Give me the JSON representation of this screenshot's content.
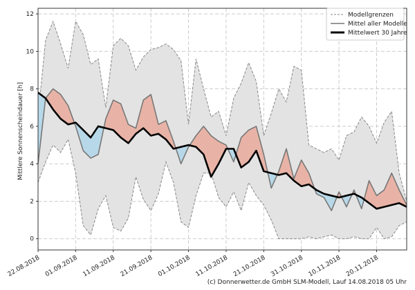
{
  "chart_data": {
    "type": "line",
    "title": "",
    "xlabel": "",
    "ylabel": "Mittlere Sonnenscheindauer [h]",
    "ylim": [
      -0.6,
      12.3
    ],
    "yticks": [
      0,
      2,
      4,
      6,
      8,
      10,
      12
    ],
    "x_start_date": "22.08.2018",
    "x_day_offsets": [
      0,
      2,
      4,
      6,
      8,
      10,
      12,
      14,
      16,
      18,
      20,
      22,
      24,
      26,
      28,
      30,
      32,
      34,
      36,
      38,
      40,
      42,
      44,
      46,
      48,
      50,
      52,
      54,
      56,
      58,
      60,
      62,
      64,
      66,
      68,
      70,
      72,
      74,
      76,
      78,
      80,
      82,
      84,
      86,
      88,
      90,
      92,
      94,
      96,
      98
    ],
    "xlim_days": [
      0,
      98
    ],
    "xtick_days": [
      0,
      10,
      20,
      30,
      40,
      50,
      60,
      70,
      80,
      90
    ],
    "xtick_labels": [
      "22.08.2018",
      "01.09.2018",
      "11.09.2018",
      "21.09.2018",
      "01.10.2018",
      "11.10.2018",
      "21.10.2018",
      "31.10.2018",
      "10.11.2018",
      "20.11.2018"
    ],
    "grid": true,
    "legend_position": "top-right",
    "series": [
      {
        "name": "Modellgrenzen",
        "style": "dashed-band",
        "upper": [
          6.5,
          10.6,
          11.6,
          10.4,
          9.1,
          11.6,
          10.9,
          9.3,
          9.6,
          7.0,
          10.3,
          10.7,
          10.3,
          9.0,
          9.7,
          10.1,
          10.2,
          10.4,
          10.1,
          9.5,
          6.1,
          9.6,
          8.0,
          6.5,
          6.8,
          5.5,
          7.5,
          8.3,
          9.4,
          8.4,
          5.5,
          6.7,
          8.0,
          7.3,
          9.2,
          9.0,
          5.0,
          4.8,
          4.6,
          4.8,
          4.2,
          5.5,
          5.7,
          6.5,
          6.0,
          5.1,
          6.2,
          6.8,
          3.5,
          2.0
        ],
        "lower": [
          3.0,
          4.1,
          5.0,
          4.6,
          5.3,
          3.5,
          0.7,
          0.2,
          1.6,
          2.3,
          0.6,
          0.4,
          1.1,
          3.3,
          2.1,
          1.5,
          2.4,
          4.1,
          3.0,
          0.9,
          0.6,
          2.3,
          3.5,
          3.5,
          2.2,
          1.7,
          2.5,
          1.5,
          3.0,
          2.3,
          1.8,
          1.0,
          0.0,
          0.0,
          0.0,
          0.0,
          0.1,
          0.0,
          0.1,
          0.2,
          0.0,
          0.0,
          0.1,
          0.0,
          0.0,
          0.6,
          0.0,
          0.1,
          0.7,
          0.9
        ]
      },
      {
        "name": "Mittel aller Modelle",
        "style": "solid-gray",
        "values": [
          4.0,
          7.5,
          8.0,
          7.7,
          7.1,
          6.0,
          4.7,
          4.3,
          4.5,
          6.4,
          7.4,
          7.2,
          6.1,
          5.9,
          7.4,
          7.7,
          6.1,
          6.3,
          5.2,
          4.0,
          4.9,
          5.5,
          6.0,
          5.5,
          5.2,
          5.0,
          4.1,
          5.4,
          5.8,
          6.0,
          4.5,
          2.7,
          3.6,
          4.8,
          3.2,
          4.2,
          3.5,
          2.4,
          2.2,
          1.5,
          2.5,
          1.7,
          2.6,
          1.6,
          3.1,
          2.3,
          2.6,
          3.5,
          2.6,
          1.8
        ],
        "fill_above_color": "#e8b3a6",
        "fill_below_color": "#b7d8e8"
      },
      {
        "name": "Mittelwert 30 Jahre",
        "style": "solid-thick",
        "values": [
          7.8,
          7.5,
          6.9,
          6.4,
          6.1,
          6.2,
          5.8,
          5.4,
          6.0,
          5.9,
          5.8,
          5.4,
          5.1,
          5.6,
          5.9,
          5.5,
          5.6,
          5.3,
          4.8,
          4.9,
          5.0,
          4.9,
          4.5,
          3.3,
          4.0,
          4.8,
          4.8,
          3.8,
          4.1,
          4.7,
          3.6,
          3.5,
          3.4,
          3.5,
          3.1,
          2.8,
          2.9,
          2.6,
          2.4,
          2.3,
          2.2,
          2.3,
          2.4,
          2.2,
          1.9,
          1.6,
          1.7,
          1.8,
          1.9,
          1.7
        ]
      }
    ],
    "colors": {
      "band_fill": "#e3e3e3",
      "band_edge": "#888888",
      "model_mean": "#777777",
      "climate_mean": "#000000",
      "above": "#e8b3a6",
      "below": "#b7d8e8",
      "grid": "#cccccc",
      "axis": "#333333"
    }
  },
  "legend": {
    "items": [
      "Modellgrenzen",
      "Mittel aller Modelle",
      "Mittelwert 30 Jahre"
    ]
  },
  "footer": {
    "credit": "(c) Donnerwetter.de GmbH SLM-Modell, Lauf 14.08.2018 05 Uhr"
  }
}
